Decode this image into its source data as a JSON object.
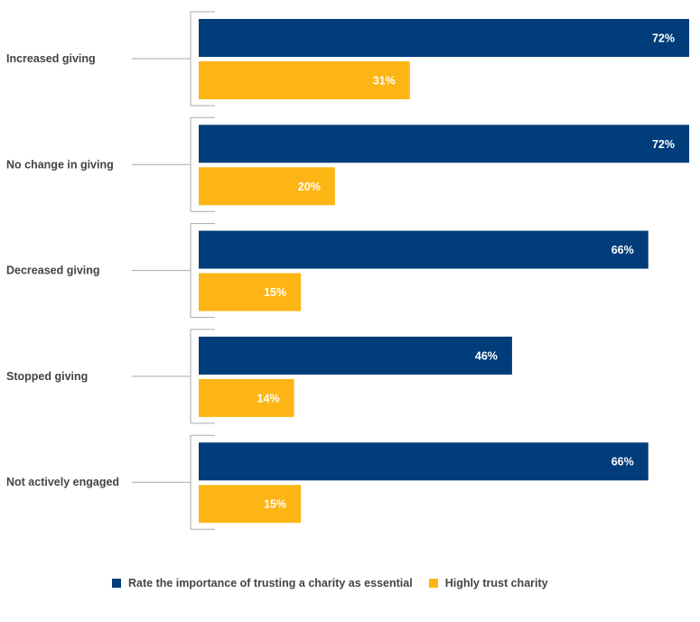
{
  "chart_data": {
    "type": "bar",
    "orientation": "horizontal",
    "title": "",
    "xlabel": "",
    "ylabel": "",
    "xlim": [
      0,
      72
    ],
    "grid": false,
    "legend_position": "bottom",
    "categories": [
      "Increased giving",
      "No change in giving",
      "Decreased giving",
      "Stopped giving",
      "Not actively engaged"
    ],
    "series": [
      {
        "name": "Rate the importance of trusting a charity as essential",
        "color": "#003d7a",
        "values": [
          72,
          72,
          66,
          46,
          66
        ],
        "labels": [
          "72%",
          "72%",
          "66%",
          "46%",
          "66%"
        ]
      },
      {
        "name": "Highly trust charity",
        "color": "#fdb515",
        "values": [
          31,
          20,
          15,
          14,
          15
        ],
        "labels": [
          "31%",
          "20%",
          "15%",
          "14%",
          "15%"
        ]
      }
    ]
  }
}
